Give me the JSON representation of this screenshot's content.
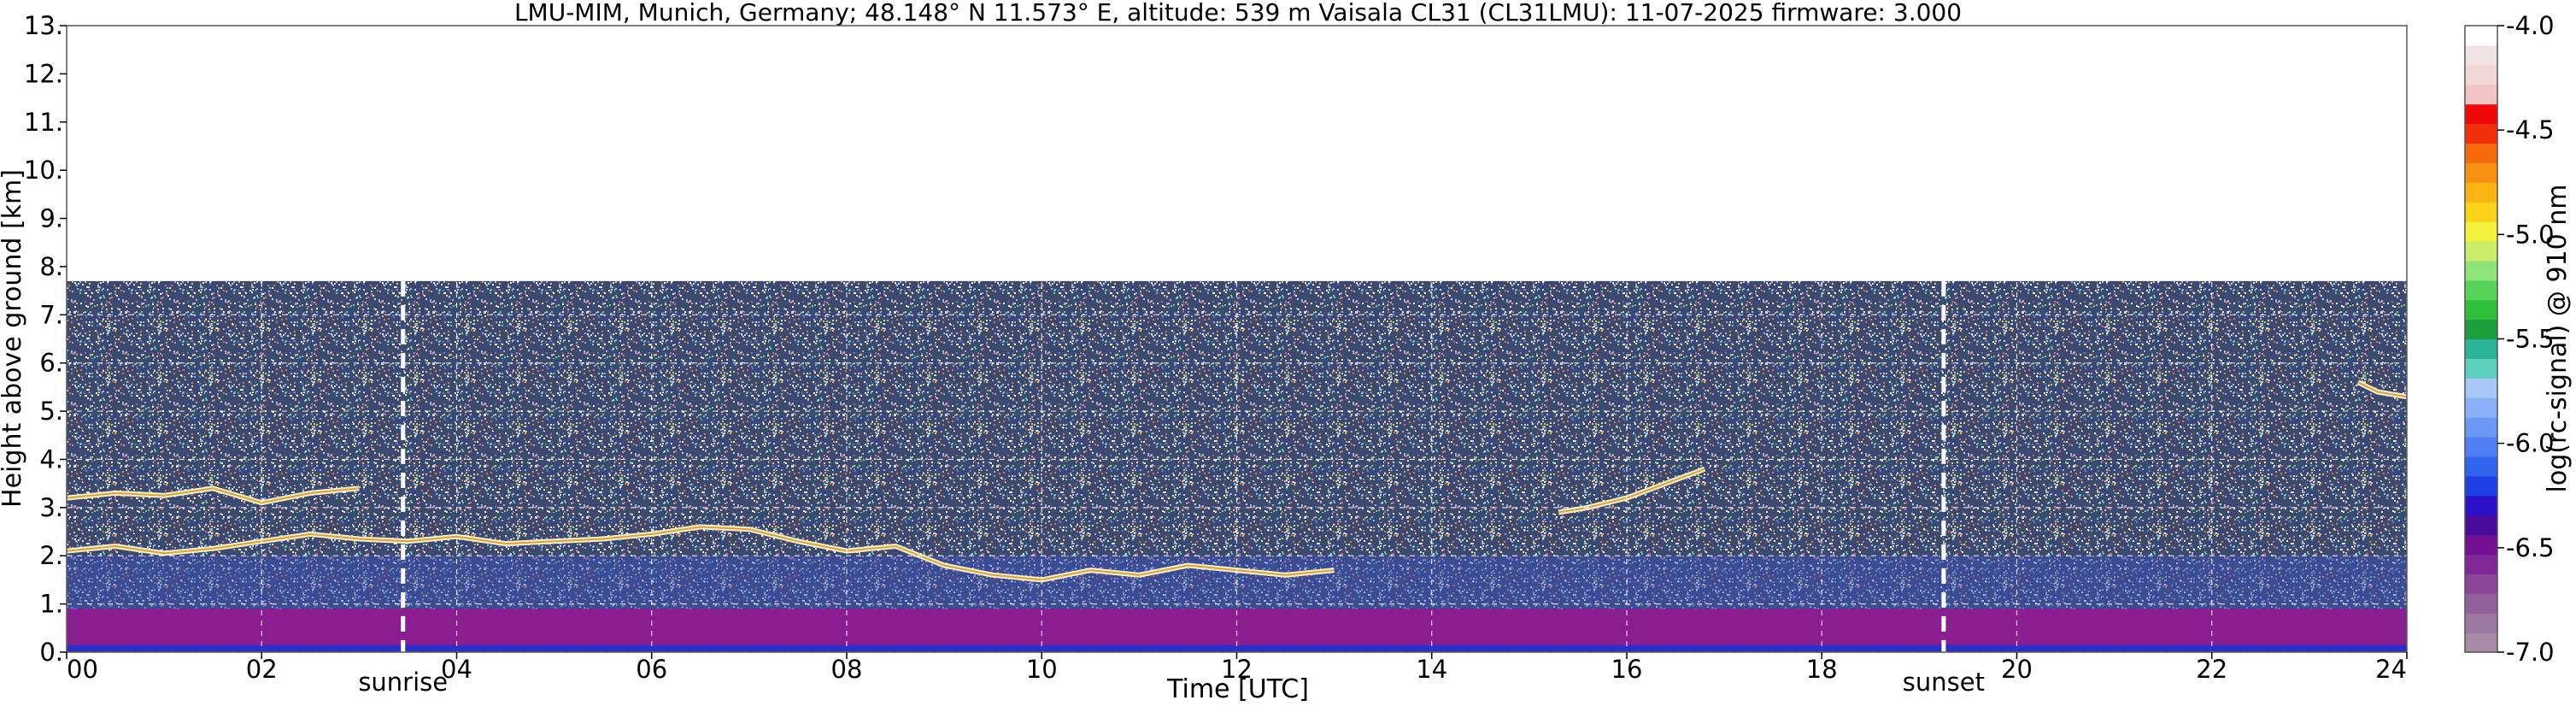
{
  "chart_data": {
    "type": "heatmap",
    "title": "LMU-MIM, Munich, Germany; 48.148° N 11.573° E, altitude: 539 m    Vaisala CL31 (CL31LMU): 11-07-2025    firmware: 3.000",
    "xlabel": "Time [UTC]",
    "ylabel": "Height above ground [km]",
    "xlim": [
      0,
      24
    ],
    "ylim": [
      0,
      13
    ],
    "x_ticks": [
      0,
      2,
      4,
      6,
      8,
      10,
      12,
      14,
      16,
      18,
      20,
      22,
      24
    ],
    "x_tick_labels": [
      "00",
      "02",
      "04",
      "06",
      "08",
      "10",
      "12",
      "14",
      "16",
      "18",
      "20",
      "22",
      "24"
    ],
    "y_ticks": [
      0,
      1,
      2,
      3,
      4,
      5,
      6,
      7,
      8,
      9,
      10,
      11,
      12,
      13
    ],
    "y_tick_labels": [
      "0.",
      "1.",
      "2.",
      "3.",
      "4.",
      "5.",
      "6.",
      "7.",
      "8.",
      "9.",
      "10.",
      "11.",
      "12.",
      "13."
    ],
    "grid": true,
    "data_top_km": 7.7,
    "markers": [
      {
        "label": "sunrise",
        "time": 3.45
      },
      {
        "label": "sunset",
        "time": 19.25
      }
    ],
    "colorbar": {
      "label": "log(rc-signal) @ 910 nm",
      "range": [
        -7.0,
        -4.0
      ],
      "tick_values": [
        -4.0,
        -4.5,
        -5.0,
        -5.5,
        -6.0,
        -6.5,
        -7.0
      ],
      "tick_labels": [
        "-4.0",
        "-4.5",
        "-5.0",
        "-5.5",
        "-6.0",
        "-6.5",
        "-7.0"
      ],
      "colors_bottom_to_top": [
        "#a98aa6",
        "#9c77a0",
        "#915f9a",
        "#8a4596",
        "#7e2795",
        "#730f91",
        "#4a0a9c",
        "#2a10c8",
        "#1e3ee6",
        "#2f64ee",
        "#4f7ef2",
        "#6d97f5",
        "#8ab0f7",
        "#a7c7f7",
        "#5fd0c0",
        "#2bb49a",
        "#1a9f3a",
        "#2fbf3a",
        "#59d25a",
        "#8fe47a",
        "#c8ee6a",
        "#f2f03a",
        "#fad21a",
        "#fab414",
        "#f79011",
        "#f46a0d",
        "#f0300a",
        "#f00808",
        "#f2c4c4",
        "#f1d6d6",
        "#f0e3e3",
        "#ffffff"
      ]
    },
    "cloud_layers": [
      {
        "name": "residual-layer-top",
        "points": [
          [
            0.0,
            2.1
          ],
          [
            0.5,
            2.2
          ],
          [
            1.0,
            2.05
          ],
          [
            1.5,
            2.15
          ],
          [
            2.0,
            2.3
          ],
          [
            2.5,
            2.45
          ],
          [
            3.0,
            2.35
          ],
          [
            3.5,
            2.3
          ],
          [
            4.0,
            2.4
          ],
          [
            4.5,
            2.25
          ],
          [
            5.0,
            2.3
          ],
          [
            5.5,
            2.35
          ],
          [
            6.0,
            2.45
          ],
          [
            6.5,
            2.6
          ],
          [
            7.0,
            2.55
          ],
          [
            7.5,
            2.3
          ],
          [
            8.0,
            2.1
          ],
          [
            8.5,
            2.2
          ],
          [
            9.0,
            1.8
          ],
          [
            9.5,
            1.6
          ],
          [
            10.0,
            1.5
          ],
          [
            10.5,
            1.7
          ],
          [
            11.0,
            1.6
          ],
          [
            11.5,
            1.8
          ],
          [
            12.0,
            1.7
          ],
          [
            12.5,
            1.6
          ],
          [
            13.0,
            1.7
          ]
        ]
      },
      {
        "name": "upper-layer-morning",
        "points": [
          [
            0.0,
            3.2
          ],
          [
            0.5,
            3.3
          ],
          [
            1.0,
            3.25
          ],
          [
            1.5,
            3.4
          ],
          [
            2.0,
            3.1
          ],
          [
            2.5,
            3.3
          ],
          [
            3.0,
            3.4
          ]
        ]
      },
      {
        "name": "afternoon-cloud-tops",
        "points": [
          [
            15.3,
            2.9
          ],
          [
            15.6,
            3.0
          ],
          [
            16.0,
            3.2
          ],
          [
            16.4,
            3.5
          ],
          [
            16.8,
            3.8
          ]
        ]
      },
      {
        "name": "evening-cloud",
        "points": [
          [
            23.5,
            5.6
          ],
          [
            23.7,
            5.4
          ],
          [
            24.0,
            5.3
          ]
        ]
      }
    ]
  }
}
